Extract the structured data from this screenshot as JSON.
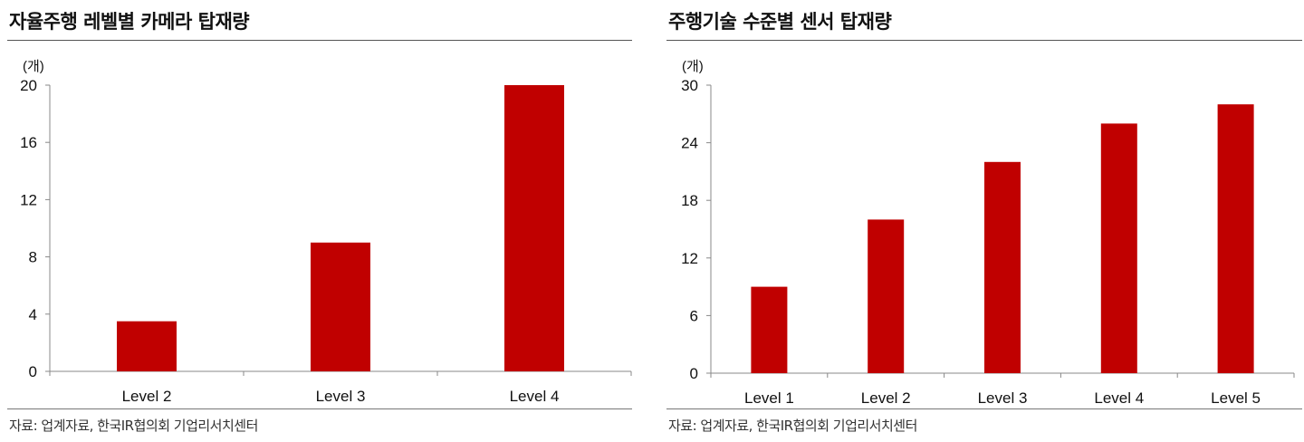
{
  "chart_data": [
    {
      "type": "bar",
      "title": "자율주행 레벨별 카메라 탑재량",
      "unit_label": "(개)",
      "categories": [
        "Level 2",
        "Level 3",
        "Level 4"
      ],
      "values": [
        3.5,
        9,
        20
      ],
      "ylim": [
        0,
        20
      ],
      "yticks": [
        0,
        4,
        8,
        12,
        16,
        20
      ],
      "xlabel": "",
      "ylabel": "",
      "grid": false,
      "bar_color": "#c00000",
      "source": "자료: 업계자료, 한국IR협의회 기업리서치센터"
    },
    {
      "type": "bar",
      "title": "주행기술 수준별 센서 탑재량",
      "unit_label": "(개)",
      "categories": [
        "Level 1",
        "Level 2",
        "Level 3",
        "Level 4",
        "Level 5"
      ],
      "values": [
        9,
        16,
        22,
        26,
        28
      ],
      "ylim": [
        0,
        30
      ],
      "yticks": [
        0,
        6,
        12,
        18,
        24,
        30
      ],
      "xlabel": "",
      "ylabel": "",
      "grid": false,
      "bar_color": "#c00000",
      "source": "자료: 업계자료, 한국IR협의회 기업리서치센터"
    }
  ]
}
